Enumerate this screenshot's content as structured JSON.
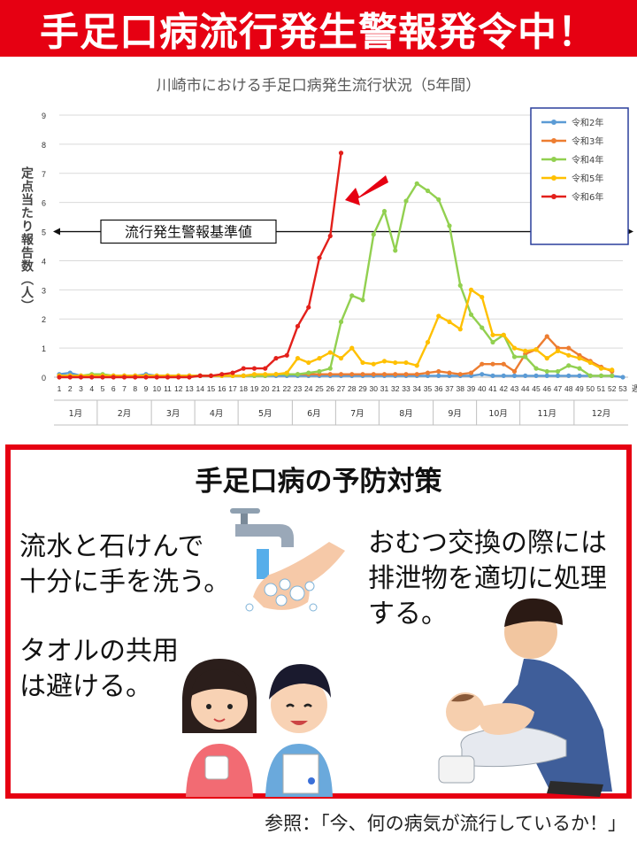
{
  "banner": {
    "title": "手足口病流行発生警報発令中！"
  },
  "chart_data": {
    "type": "line",
    "title": "川崎市における手足口病発生流行状況（5年間）",
    "ylabel": "定点当たり報告数（人）",
    "xunit": "週",
    "ylim": [
      0,
      9
    ],
    "yticks": [
      0,
      1,
      2,
      3,
      4,
      5,
      6,
      7,
      8,
      9
    ],
    "grid": true,
    "legend_position": "top-right",
    "weeks": [
      1,
      2,
      3,
      4,
      5,
      6,
      7,
      8,
      9,
      10,
      11,
      12,
      13,
      14,
      15,
      16,
      17,
      18,
      19,
      20,
      21,
      22,
      23,
      24,
      25,
      26,
      27,
      28,
      29,
      30,
      31,
      32,
      33,
      34,
      35,
      36,
      37,
      38,
      39,
      40,
      41,
      42,
      43,
      44,
      45,
      46,
      47,
      48,
      49,
      50,
      51,
      52,
      53
    ],
    "months": [
      {
        "label": "1月",
        "start": 1,
        "end": 4
      },
      {
        "label": "2月",
        "start": 5,
        "end": 9
      },
      {
        "label": "3月",
        "start": 10,
        "end": 13
      },
      {
        "label": "4月",
        "start": 14,
        "end": 17
      },
      {
        "label": "5月",
        "start": 18,
        "end": 22
      },
      {
        "label": "6月",
        "start": 23,
        "end": 26
      },
      {
        "label": "7月",
        "start": 27,
        "end": 30
      },
      {
        "label": "8月",
        "start": 31,
        "end": 35
      },
      {
        "label": "9月",
        "start": 36,
        "end": 39
      },
      {
        "label": "10月",
        "start": 40,
        "end": 43
      },
      {
        "label": "11月",
        "start": 44,
        "end": 48
      },
      {
        "label": "12月",
        "start": 49,
        "end": 53
      }
    ],
    "threshold": {
      "value": 5,
      "label": "流行発生警報基準値"
    },
    "series": [
      {
        "name": "令和2年",
        "color": "#5b9bd5",
        "values": [
          0.1,
          0.15,
          0.05,
          0.05,
          0.05,
          0.05,
          0.05,
          0.05,
          0.1,
          0.05,
          0.05,
          0.05,
          0.05,
          0.05,
          0.05,
          0.05,
          0.05,
          0.05,
          0.05,
          0.05,
          0.05,
          0.05,
          0.05,
          0.05,
          0.05,
          0.05,
          0.05,
          0.05,
          0.05,
          0.05,
          0.05,
          0.05,
          0.05,
          0.05,
          0.05,
          0.05,
          0.05,
          0.05,
          0.05,
          0.1,
          0.05,
          0.05,
          0.05,
          0.05,
          0.05,
          0.05,
          0.05,
          0.05,
          0.05,
          0.05,
          0.05,
          0.05,
          0.0
        ]
      },
      {
        "name": "令和3年",
        "color": "#ed7d31",
        "values": [
          0.05,
          0.05,
          0.05,
          0.05,
          0.05,
          0.05,
          0.05,
          0.05,
          0.05,
          0.05,
          0.05,
          0.05,
          0.05,
          0.05,
          0.05,
          0.05,
          0.05,
          0.05,
          0.05,
          0.05,
          0.1,
          0.1,
          0.1,
          0.1,
          0.1,
          0.1,
          0.1,
          0.1,
          0.1,
          0.1,
          0.1,
          0.1,
          0.1,
          0.1,
          0.15,
          0.2,
          0.15,
          0.1,
          0.15,
          0.45,
          0.45,
          0.45,
          0.2,
          0.8,
          0.95,
          1.4,
          1.0,
          1.0,
          0.75,
          0.55,
          0.35,
          0.2,
          null
        ]
      },
      {
        "name": "令和4年",
        "color": "#92d050",
        "values": [
          0.05,
          0.05,
          0.05,
          0.1,
          0.1,
          0.05,
          0.05,
          0.05,
          0.05,
          0.05,
          0.05,
          0.05,
          0.05,
          0.05,
          0.05,
          0.05,
          0.05,
          0.05,
          0.05,
          0.05,
          0.1,
          0.1,
          0.1,
          0.15,
          0.2,
          0.3,
          1.9,
          2.8,
          2.65,
          4.9,
          5.7,
          4.35,
          6.05,
          6.65,
          6.4,
          6.1,
          5.2,
          3.15,
          2.15,
          1.7,
          1.2,
          1.45,
          0.7,
          0.7,
          0.3,
          0.2,
          0.2,
          0.4,
          0.3,
          0.05,
          0.05,
          0.05,
          null
        ]
      },
      {
        "name": "令和5年",
        "color": "#ffc000",
        "values": [
          0.05,
          0.05,
          0.05,
          0.05,
          0.05,
          0.05,
          0.05,
          0.05,
          0.05,
          0.05,
          0.05,
          0.05,
          0.05,
          0.05,
          0.05,
          0.05,
          0.05,
          0.05,
          0.1,
          0.1,
          0.1,
          0.15,
          0.65,
          0.5,
          0.65,
          0.85,
          0.65,
          1.0,
          0.5,
          0.45,
          0.55,
          0.5,
          0.5,
          0.4,
          1.2,
          2.1,
          1.9,
          1.65,
          3.0,
          2.75,
          1.45,
          1.45,
          1.0,
          0.9,
          0.95,
          0.65,
          0.9,
          0.75,
          0.65,
          0.5,
          0.3,
          0.25,
          null
        ]
      },
      {
        "name": "令和6年",
        "color": "#e3201b",
        "values": [
          0.0,
          0.0,
          0.0,
          0.0,
          0.0,
          0.0,
          0.0,
          0.0,
          0.0,
          0.0,
          0.0,
          0.0,
          0.0,
          0.05,
          0.05,
          0.1,
          0.15,
          0.3,
          0.3,
          0.3,
          0.65,
          0.75,
          1.75,
          2.4,
          4.1,
          4.85,
          7.7,
          null,
          null,
          null,
          null,
          null,
          null,
          null,
          null,
          null,
          null,
          null,
          null,
          null,
          null,
          null,
          null,
          null,
          null,
          null,
          null,
          null,
          null,
          null,
          null,
          null,
          null
        ]
      }
    ]
  },
  "prevention": {
    "title": "手足口病の予防対策",
    "wash": "流水と石けんで\n十分に手を洗う。",
    "diaper": "おむつ交換の際には\n排泄物を適切に処理\nする。",
    "towel": "タオルの共用\nは避ける。"
  },
  "footer": {
    "reference": "参照：「今、何の病気が流行しているか！」"
  }
}
